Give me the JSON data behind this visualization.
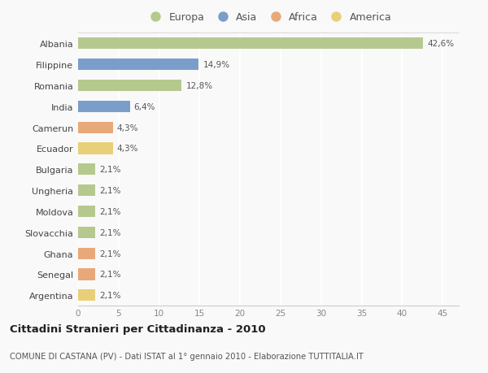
{
  "countries": [
    "Albania",
    "Filippine",
    "Romania",
    "India",
    "Camerun",
    "Ecuador",
    "Bulgaria",
    "Ungheria",
    "Moldova",
    "Slovacchia",
    "Ghana",
    "Senegal",
    "Argentina"
  ],
  "values": [
    42.6,
    14.9,
    12.8,
    6.4,
    4.3,
    4.3,
    2.1,
    2.1,
    2.1,
    2.1,
    2.1,
    2.1,
    2.1
  ],
  "labels": [
    "42,6%",
    "14,9%",
    "12,8%",
    "6,4%",
    "4,3%",
    "4,3%",
    "2,1%",
    "2,1%",
    "2,1%",
    "2,1%",
    "2,1%",
    "2,1%",
    "2,1%"
  ],
  "continents": [
    "Europa",
    "Asia",
    "Europa",
    "Asia",
    "Africa",
    "America",
    "Europa",
    "Europa",
    "Europa",
    "Europa",
    "Africa",
    "Africa",
    "America"
  ],
  "continent_colors": {
    "Europa": "#b5c98e",
    "Asia": "#7b9dc9",
    "Africa": "#e8a97a",
    "America": "#e8d07a"
  },
  "legend_order": [
    "Europa",
    "Asia",
    "Africa",
    "America"
  ],
  "title": "Cittadini Stranieri per Cittadinanza - 2010",
  "subtitle": "COMUNE DI CASTANA (PV) - Dati ISTAT al 1° gennaio 2010 - Elaborazione TUTTITALIA.IT",
  "xlim": [
    0,
    47
  ],
  "xticks": [
    0,
    5,
    10,
    15,
    20,
    25,
    30,
    35,
    40,
    45
  ],
  "background_color": "#f9f9f9",
  "plot_bg_color": "#f9f9f9",
  "grid_color": "#ffffff",
  "bar_height": 0.55
}
